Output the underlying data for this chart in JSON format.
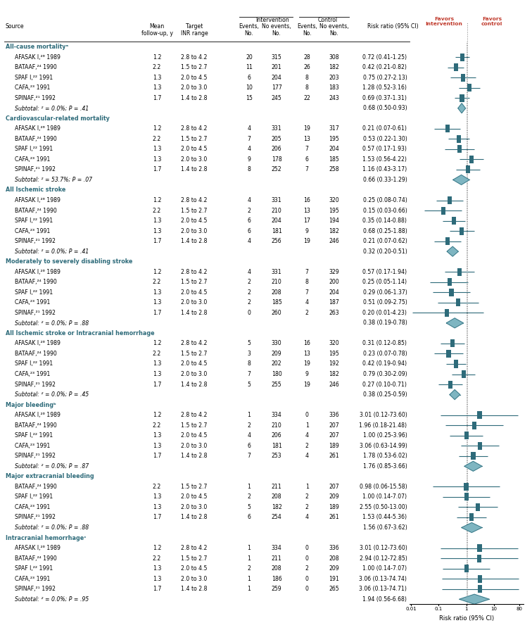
{
  "sections": [
    {
      "name": "All-cause mortalityᵃ",
      "rows": [
        {
          "source": "AFASAK I,²⁶ 1989",
          "followup": "1.2",
          "inr": "2.8 to 4.2",
          "ie": "20",
          "ine": "315",
          "ce": "28",
          "cne": "308",
          "rr_text": "0.72 (0.41-1.25)",
          "rr": 0.72,
          "ci_lo": 0.41,
          "ci_hi": 1.25
        },
        {
          "source": "BATAAF,²⁴ 1990",
          "followup": "2.2",
          "inr": "1.5 to 2.7",
          "ie": "11",
          "ine": "201",
          "ce": "26",
          "cne": "182",
          "rr_text": "0.42 (0.21-0.82)",
          "rr": 0.42,
          "ci_lo": 0.21,
          "ci_hi": 0.82
        },
        {
          "source": "SPAF I,²² 1991",
          "followup": "1.3",
          "inr": "2.0 to 4.5",
          "ie": "6",
          "ine": "204",
          "ce": "8",
          "cne": "203",
          "rr_text": "0.75 (0.27-2.13)",
          "rr": 0.75,
          "ci_lo": 0.27,
          "ci_hi": 2.13
        },
        {
          "source": "CAFA,²³ 1991",
          "followup": "1.3",
          "inr": "2.0 to 3.0",
          "ie": "10",
          "ine": "177",
          "ce": "8",
          "cne": "183",
          "rr_text": "1.28 (0.52-3.16)",
          "rr": 1.28,
          "ci_lo": 0.52,
          "ci_hi": 3.16
        },
        {
          "source": "SPINAF,²¹ 1992",
          "followup": "1.7",
          "inr": "1.4 to 2.8",
          "ie": "15",
          "ine": "245",
          "ce": "22",
          "cne": "243",
          "rr_text": "0.69 (0.37-1.31)",
          "rr": 0.69,
          "ci_lo": 0.37,
          "ci_hi": 1.31
        }
      ],
      "subtotal_text": "Subtotal: ² = 0.0%; P = .41",
      "subtotal_rr_text": "0.68 (0.50-0.93)",
      "subtotal_rr": 0.68,
      "subtotal_lo": 0.5,
      "subtotal_hi": 0.93
    },
    {
      "name": "Cardiovascular-related mortality",
      "rows": [
        {
          "source": "AFASAK I,²⁶ 1989",
          "followup": "1.2",
          "inr": "2.8 to 4.2",
          "ie": "4",
          "ine": "331",
          "ce": "19",
          "cne": "317",
          "rr_text": "0.21 (0.07-0.61)",
          "rr": 0.21,
          "ci_lo": 0.07,
          "ci_hi": 0.61
        },
        {
          "source": "BATAAF,²⁴ 1990",
          "followup": "2.2",
          "inr": "1.5 to 2.7",
          "ie": "7",
          "ine": "205",
          "ce": "13",
          "cne": "195",
          "rr_text": "0.53 (0.22-1.30)",
          "rr": 0.53,
          "ci_lo": 0.22,
          "ci_hi": 1.3
        },
        {
          "source": "SPAF I,²² 1991",
          "followup": "1.3",
          "inr": "2.0 to 4.5",
          "ie": "4",
          "ine": "206",
          "ce": "7",
          "cne": "204",
          "rr_text": "0.57 (0.17-1.93)",
          "rr": 0.57,
          "ci_lo": 0.17,
          "ci_hi": 1.93
        },
        {
          "source": "CAFA,²³ 1991",
          "followup": "1.3",
          "inr": "2.0 to 3.0",
          "ie": "9",
          "ine": "178",
          "ce": "6",
          "cne": "185",
          "rr_text": "1.53 (0.56-4.22)",
          "rr": 1.53,
          "ci_lo": 0.56,
          "ci_hi": 4.22
        },
        {
          "source": "SPINAF,²¹ 1992",
          "followup": "1.7",
          "inr": "1.4 to 2.8",
          "ie": "8",
          "ine": "252",
          "ce": "7",
          "cne": "258",
          "rr_text": "1.16 (0.43-3.17)",
          "rr": 1.16,
          "ci_lo": 0.43,
          "ci_hi": 3.17
        }
      ],
      "subtotal_text": "Subtotal: ² = 53.7%; P = .07",
      "subtotal_rr_text": "0.66 (0.33-1.29)",
      "subtotal_rr": 0.66,
      "subtotal_lo": 0.33,
      "subtotal_hi": 1.29
    },
    {
      "name": "All Ischemic stroke",
      "rows": [
        {
          "source": "AFASAK I,²⁶ 1989",
          "followup": "1.2",
          "inr": "2.8 to 4.2",
          "ie": "4",
          "ine": "331",
          "ce": "16",
          "cne": "320",
          "rr_text": "0.25 (0.08-0.74)",
          "rr": 0.25,
          "ci_lo": 0.08,
          "ci_hi": 0.74
        },
        {
          "source": "BATAAF,²⁴ 1990",
          "followup": "2.2",
          "inr": "1.5 to 2.7",
          "ie": "2",
          "ine": "210",
          "ce": "13",
          "cne": "195",
          "rr_text": "0.15 (0.03-0.66)",
          "rr": 0.15,
          "ci_lo": 0.03,
          "ci_hi": 0.66
        },
        {
          "source": "SPAF I,²² 1991",
          "followup": "1.3",
          "inr": "2.0 to 4.5",
          "ie": "6",
          "ine": "204",
          "ce": "17",
          "cne": "194",
          "rr_text": "0.35 (0.14-0.88)",
          "rr": 0.35,
          "ci_lo": 0.14,
          "ci_hi": 0.88
        },
        {
          "source": "CAFA,²³ 1991",
          "followup": "1.3",
          "inr": "2.0 to 3.0",
          "ie": "6",
          "ine": "181",
          "ce": "9",
          "cne": "182",
          "rr_text": "0.68 (0.25-1.88)",
          "rr": 0.68,
          "ci_lo": 0.25,
          "ci_hi": 1.88
        },
        {
          "source": "SPINAF,²¹ 1992",
          "followup": "1.7",
          "inr": "1.4 to 2.8",
          "ie": "4",
          "ine": "256",
          "ce": "19",
          "cne": "246",
          "rr_text": "0.21 (0.07-0.62)",
          "rr": 0.21,
          "ci_lo": 0.07,
          "ci_hi": 0.62
        }
      ],
      "subtotal_text": "Subtotal: ² = 0.0%; P = .41",
      "subtotal_rr_text": "0.32 (0.20-0.51)",
      "subtotal_rr": 0.32,
      "subtotal_lo": 0.2,
      "subtotal_hi": 0.51
    },
    {
      "name": "Moderately to severely disabling stroke",
      "rows": [
        {
          "source": "AFASAK I,²⁶ 1989",
          "followup": "1.2",
          "inr": "2.8 to 4.2",
          "ie": "4",
          "ine": "331",
          "ce": "7",
          "cne": "329",
          "rr_text": "0.57 (0.17-1.94)",
          "rr": 0.57,
          "ci_lo": 0.17,
          "ci_hi": 1.94
        },
        {
          "source": "BATAAF,²⁴ 1990",
          "followup": "2.2",
          "inr": "1.5 to 2.7",
          "ie": "2",
          "ine": "210",
          "ce": "8",
          "cne": "200",
          "rr_text": "0.25 (0.05-1.14)",
          "rr": 0.25,
          "ci_lo": 0.05,
          "ci_hi": 1.14
        },
        {
          "source": "SPAF I,²² 1991",
          "followup": "1.3",
          "inr": "2.0 to 4.5",
          "ie": "2",
          "ine": "208",
          "ce": "7",
          "cne": "204",
          "rr_text": "0.29 (0.06-1.37)",
          "rr": 0.29,
          "ci_lo": 0.06,
          "ci_hi": 1.37
        },
        {
          "source": "CAFA,²³ 1991",
          "followup": "1.3",
          "inr": "2.0 to 3.0",
          "ie": "2",
          "ine": "185",
          "ce": "4",
          "cne": "187",
          "rr_text": "0.51 (0.09-2.75)",
          "rr": 0.51,
          "ci_lo": 0.09,
          "ci_hi": 2.75
        },
        {
          "source": "SPINAF,²¹ 1992",
          "followup": "1.7",
          "inr": "1.4 to 2.8",
          "ie": "0",
          "ine": "260",
          "ce": "2",
          "cne": "263",
          "rr_text": "0.20 (0.01-4.23)",
          "rr": 0.2,
          "ci_lo": 0.01,
          "ci_hi": 4.23
        }
      ],
      "subtotal_text": "Subtotal: ² = 0.0%; P = .88",
      "subtotal_rr_text": "0.38 (0.19-0.78)",
      "subtotal_rr": 0.38,
      "subtotal_lo": 0.19,
      "subtotal_hi": 0.78
    },
    {
      "name": "All Ischemic stroke or Intracranial hemorrhage",
      "rows": [
        {
          "source": "AFASAK I,²⁶ 1989",
          "followup": "1.2",
          "inr": "2.8 to 4.2",
          "ie": "5",
          "ine": "330",
          "ce": "16",
          "cne": "320",
          "rr_text": "0.31 (0.12-0.85)",
          "rr": 0.31,
          "ci_lo": 0.12,
          "ci_hi": 0.85
        },
        {
          "source": "BATAAF,²⁴ 1990",
          "followup": "2.2",
          "inr": "1.5 to 2.7",
          "ie": "3",
          "ine": "209",
          "ce": "13",
          "cne": "195",
          "rr_text": "0.23 (0.07-0.78)",
          "rr": 0.23,
          "ci_lo": 0.07,
          "ci_hi": 0.78
        },
        {
          "source": "SPAF I,²² 1991",
          "followup": "1.3",
          "inr": "2.0 to 4.5",
          "ie": "8",
          "ine": "202",
          "ce": "19",
          "cne": "192",
          "rr_text": "0.42 (0.19-0.94)",
          "rr": 0.42,
          "ci_lo": 0.19,
          "ci_hi": 0.94
        },
        {
          "source": "CAFA,²³ 1991",
          "followup": "1.3",
          "inr": "2.0 to 3.0",
          "ie": "7",
          "ine": "180",
          "ce": "9",
          "cne": "182",
          "rr_text": "0.79 (0.30-2.09)",
          "rr": 0.79,
          "ci_lo": 0.3,
          "ci_hi": 2.09
        },
        {
          "source": "SPINAF,²¹ 1992",
          "followup": "1.7",
          "inr": "1.4 to 2.8",
          "ie": "5",
          "ine": "255",
          "ce": "19",
          "cne": "246",
          "rr_text": "0.27 (0.10-0.71)",
          "rr": 0.27,
          "ci_lo": 0.1,
          "ci_hi": 0.71
        }
      ],
      "subtotal_text": "Subtotal: ² = 0.0%; P = .45",
      "subtotal_rr_text": "0.38 (0.25-0.59)",
      "subtotal_rr": 0.38,
      "subtotal_lo": 0.25,
      "subtotal_hi": 0.59
    },
    {
      "name": "Major bleedingᵇ",
      "rows": [
        {
          "source": "AFASAK I,²⁶ 1989",
          "followup": "1.2",
          "inr": "2.8 to 4.2",
          "ie": "1",
          "ine": "334",
          "ce": "0",
          "cne": "336",
          "rr_text": "3.01 (0.12-73.60)",
          "rr": 3.01,
          "ci_lo": 0.12,
          "ci_hi": 73.6
        },
        {
          "source": "BATAAF,²⁴ 1990",
          "followup": "2.2",
          "inr": "1.5 to 2.7",
          "ie": "2",
          "ine": "210",
          "ce": "1",
          "cne": "207",
          "rr_text": "1.96 (0.18-21.48)",
          "rr": 1.96,
          "ci_lo": 0.18,
          "ci_hi": 21.48
        },
        {
          "source": "SPAF I,²² 1991",
          "followup": "1.3",
          "inr": "2.0 to 4.5",
          "ie": "4",
          "ine": "206",
          "ce": "4",
          "cne": "207",
          "rr_text": "1.00 (0.25-3.96)",
          "rr": 1.0,
          "ci_lo": 0.25,
          "ci_hi": 3.96
        },
        {
          "source": "CAFA,²³ 1991",
          "followup": "1.3",
          "inr": "2.0 to 3.0",
          "ie": "6",
          "ine": "181",
          "ce": "2",
          "cne": "189",
          "rr_text": "3.06 (0.63-14.99)",
          "rr": 3.06,
          "ci_lo": 0.63,
          "ci_hi": 14.99
        },
        {
          "source": "SPINAF,²¹ 1992",
          "followup": "1.7",
          "inr": "1.4 to 2.8",
          "ie": "7",
          "ine": "253",
          "ce": "4",
          "cne": "261",
          "rr_text": "1.78 (0.53-6.02)",
          "rr": 1.78,
          "ci_lo": 0.53,
          "ci_hi": 6.02
        }
      ],
      "subtotal_text": "Subtotal: ² = 0.0%; P = .87",
      "subtotal_rr_text": "1.76 (0.85-3.66)",
      "subtotal_rr": 1.76,
      "subtotal_lo": 0.85,
      "subtotal_hi": 3.66
    },
    {
      "name": "Major extracranial bleeding",
      "rows": [
        {
          "source": "BATAAF,²⁴ 1990",
          "followup": "2.2",
          "inr": "1.5 to 2.7",
          "ie": "1",
          "ine": "211",
          "ce": "1",
          "cne": "207",
          "rr_text": "0.98 (0.06-15.58)",
          "rr": 0.98,
          "ci_lo": 0.06,
          "ci_hi": 15.58
        },
        {
          "source": "SPAF I,²² 1991",
          "followup": "1.3",
          "inr": "2.0 to 4.5",
          "ie": "2",
          "ine": "208",
          "ce": "2",
          "cne": "209",
          "rr_text": "1.00 (0.14-7.07)",
          "rr": 1.0,
          "ci_lo": 0.14,
          "ci_hi": 7.07
        },
        {
          "source": "CAFA,²³ 1991",
          "followup": "1.3",
          "inr": "2.0 to 3.0",
          "ie": "5",
          "ine": "182",
          "ce": "2",
          "cne": "189",
          "rr_text": "2.55 (0.50-13.00)",
          "rr": 2.55,
          "ci_lo": 0.5,
          "ci_hi": 13.0
        },
        {
          "source": "SPINAF,²¹ 1992",
          "followup": "1.7",
          "inr": "1.4 to 2.8",
          "ie": "6",
          "ine": "254",
          "ce": "4",
          "cne": "261",
          "rr_text": "1.53 (0.44-5.36)",
          "rr": 1.53,
          "ci_lo": 0.44,
          "ci_hi": 5.36
        }
      ],
      "subtotal_text": "Subtotal: ² = 0.0%; P = .88",
      "subtotal_rr_text": "1.56 (0.67-3.62)",
      "subtotal_rr": 1.56,
      "subtotal_lo": 0.67,
      "subtotal_hi": 3.62
    },
    {
      "name": "Intracranial hemorrhageᶜ",
      "rows": [
        {
          "source": "AFASAK I,²⁶ 1989",
          "followup": "1.2",
          "inr": "2.8 to 4.2",
          "ie": "1",
          "ine": "334",
          "ce": "0",
          "cne": "336",
          "rr_text": "3.01 (0.12-73.60)",
          "rr": 3.01,
          "ci_lo": 0.12,
          "ci_hi": 73.6
        },
        {
          "source": "BATAAF,²⁴ 1990",
          "followup": "2.2",
          "inr": "1.5 to 2.7",
          "ie": "1",
          "ine": "211",
          "ce": "0",
          "cne": "208",
          "rr_text": "2.94 (0.12-72.85)",
          "rr": 2.94,
          "ci_lo": 0.12,
          "ci_hi": 72.85
        },
        {
          "source": "SPAF I,²² 1991",
          "followup": "1.3",
          "inr": "2.0 to 4.5",
          "ie": "2",
          "ine": "208",
          "ce": "2",
          "cne": "209",
          "rr_text": "1.00 (0.14-7.07)",
          "rr": 1.0,
          "ci_lo": 0.14,
          "ci_hi": 7.07
        },
        {
          "source": "CAFA,²³ 1991",
          "followup": "1.3",
          "inr": "2.0 to 3.0",
          "ie": "1",
          "ine": "186",
          "ce": "0",
          "cne": "191",
          "rr_text": "3.06 (0.13-74.74)",
          "rr": 3.06,
          "ci_lo": 0.13,
          "ci_hi": 74.74
        },
        {
          "source": "SPINAF,²¹ 1992",
          "followup": "1.7",
          "inr": "1.4 to 2.8",
          "ie": "1",
          "ine": "259",
          "ce": "0",
          "cne": "265",
          "rr_text": "3.06 (0.13-74.71)",
          "rr": 3.06,
          "ci_lo": 0.13,
          "ci_hi": 74.71
        }
      ],
      "subtotal_text": "Subtotal: ² = 0.0%; P = .95",
      "subtotal_rr_text": "1.94 (0.56-6.68)",
      "subtotal_rr": 1.94,
      "subtotal_lo": 0.56,
      "subtotal_hi": 6.68
    }
  ],
  "plot_color": "#2E6B7A",
  "diamond_color": "#7EB5C1",
  "section_color": "#2E6B7A",
  "favors_color": "#C0392B",
  "xlabel": "Risk ratio (95% CI)"
}
